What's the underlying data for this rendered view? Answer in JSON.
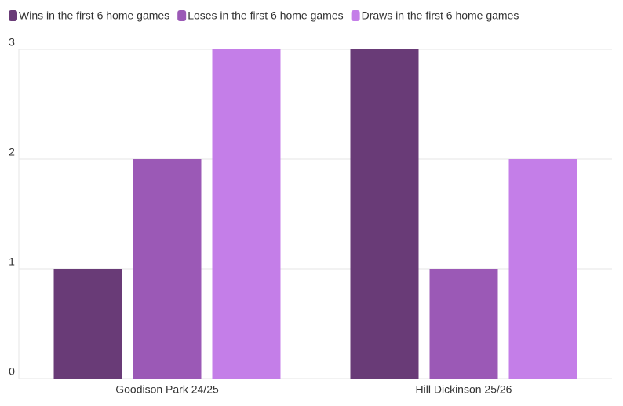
{
  "chart_data": {
    "type": "bar",
    "categories": [
      "Goodison Park 24/25",
      "Hill Dickinson 25/26"
    ],
    "series": [
      {
        "name": "Wins in the first 6 home games",
        "color": "#693b77",
        "values": [
          1,
          3
        ]
      },
      {
        "name": "Loses in the first 6 home games",
        "color": "#9b59b6",
        "values": [
          2,
          1
        ]
      },
      {
        "name": "Draws in the first 6 home games",
        "color": "#c47ee8",
        "values": [
          3,
          2
        ]
      }
    ],
    "ylim": [
      0,
      3
    ],
    "yticks": [
      0,
      1,
      2,
      3
    ],
    "grid": true,
    "legend": "top"
  }
}
